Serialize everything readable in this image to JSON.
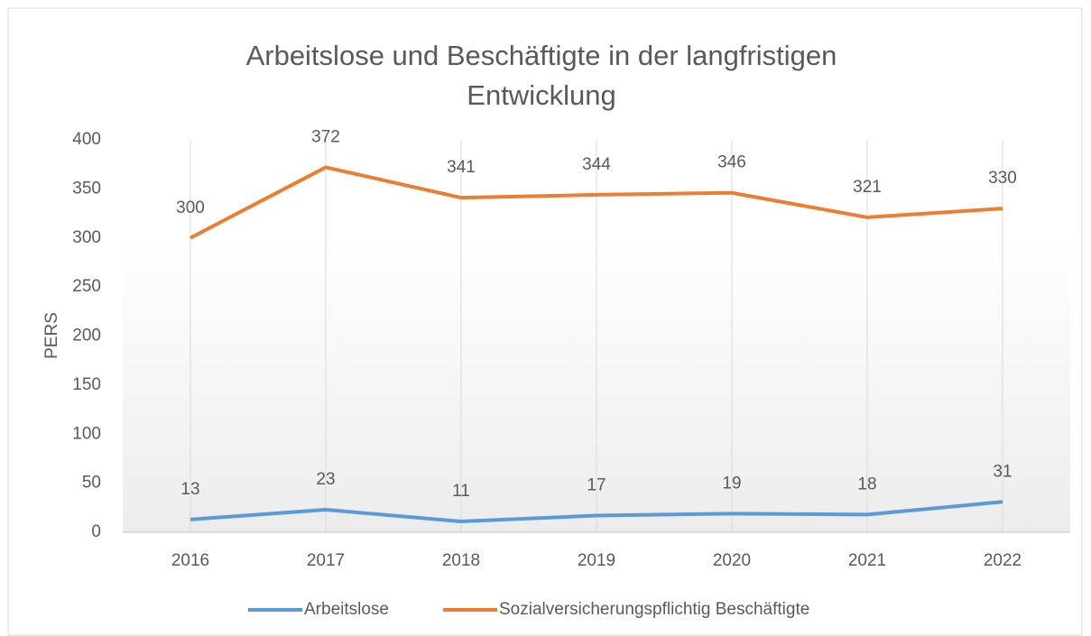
{
  "chart_data": {
    "type": "line",
    "title": "Arbeitslose und Beschäftigte in der langfristigen Entwicklung",
    "y_label": "PERS",
    "categories": [
      "2016",
      "2017",
      "2018",
      "2019",
      "2020",
      "2021",
      "2022"
    ],
    "series": [
      {
        "name": "Arbeitslose",
        "color": "#5b9bd5",
        "values": [
          13,
          23,
          11,
          17,
          19,
          18,
          31
        ]
      },
      {
        "name": "Sozialversicherungspflichtig Beschäftigte",
        "color": "#ed7d31",
        "values": [
          300,
          372,
          341,
          344,
          346,
          321,
          330
        ]
      }
    ],
    "ylim": [
      0,
      400
    ],
    "yticks": [
      0,
      50,
      100,
      150,
      200,
      250,
      300,
      350,
      400
    ],
    "grid": true,
    "legend": "bottom",
    "data_labels": true
  }
}
